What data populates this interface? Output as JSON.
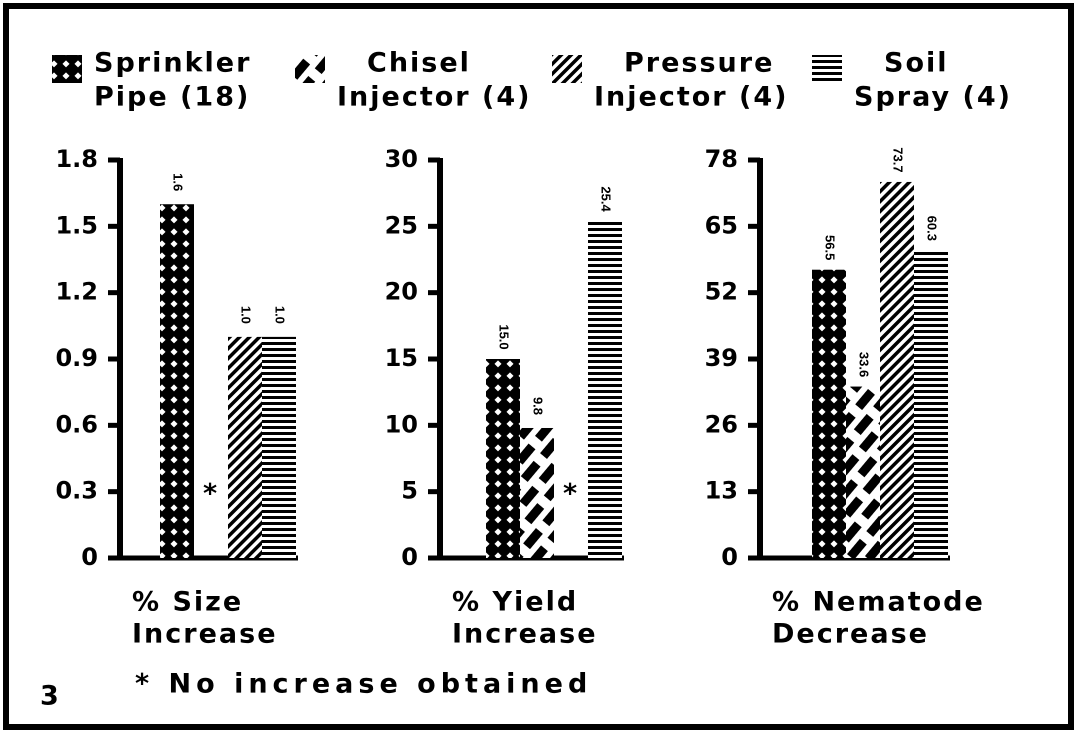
{
  "legend": [
    [
      "Sprinkler",
      "Pipe (18)"
    ],
    [
      "Chisel",
      "Injector (4)"
    ],
    [
      "Pressure",
      "Injector (4)"
    ],
    [
      "Soil",
      "Spray (4)"
    ]
  ],
  "figure_number": "3",
  "footnote": "* No increase obtained",
  "chart_data": [
    {
      "type": "bar",
      "xlabel": [
        "% Size",
        "Increase"
      ],
      "values": [
        1.6,
        null,
        1.0,
        1.0
      ],
      "value_labels": [
        "1.6",
        null,
        "1.0",
        "1.0"
      ],
      "annotation": "*",
      "ylim": [
        0,
        1.8
      ],
      "yticks": [
        0,
        0.3,
        0.6,
        0.9,
        1.2,
        1.5,
        1.8
      ]
    },
    {
      "type": "bar",
      "xlabel": [
        "% Yield",
        "Increase"
      ],
      "values": [
        15.0,
        9.8,
        null,
        25.4
      ],
      "value_labels": [
        "15.0",
        "9.8",
        null,
        "25.4"
      ],
      "annotation": "*",
      "ylim": [
        0,
        30
      ],
      "yticks": [
        0,
        5,
        10,
        15,
        20,
        25,
        30
      ]
    },
    {
      "type": "bar",
      "xlabel": [
        "% Nematode",
        "Decrease"
      ],
      "values": [
        56.5,
        33.6,
        73.7,
        60.3
      ],
      "value_labels": [
        "56.5",
        "33.6",
        "73.7",
        "60.3"
      ],
      "ylim": [
        0,
        78
      ],
      "yticks": [
        0,
        13,
        26,
        39,
        52,
        65,
        78
      ]
    }
  ]
}
